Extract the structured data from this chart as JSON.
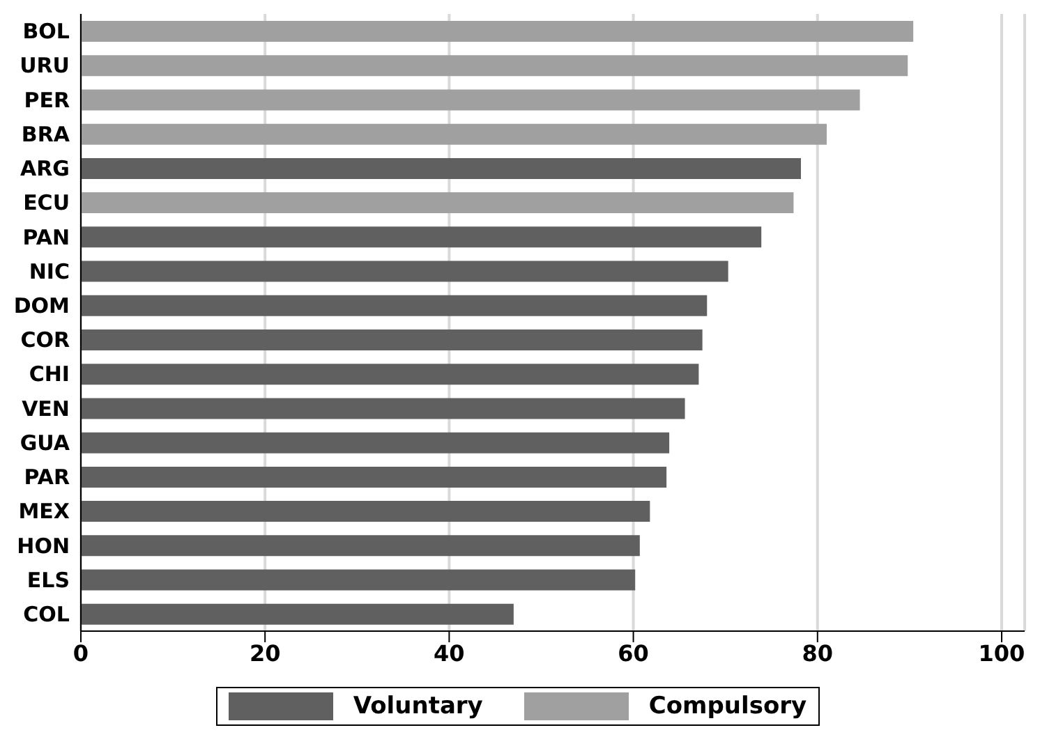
{
  "chart_data": {
    "type": "bar",
    "orientation": "horizontal",
    "stacked": true,
    "categories": [
      "BOL",
      "URU",
      "PER",
      "BRA",
      "ARG",
      "ECU",
      "PAN",
      "NIC",
      "DOM",
      "COR",
      "CHI",
      "VEN",
      "GUA",
      "PAR",
      "MEX",
      "HON",
      "ELS",
      "COL"
    ],
    "series": [
      {
        "name": "Voluntary",
        "color": "#606060",
        "values": [
          null,
          null,
          null,
          null,
          78.2,
          null,
          73.9,
          70.3,
          68.0,
          67.5,
          67.1,
          65.6,
          63.9,
          63.6,
          61.8,
          60.7,
          60.2,
          47.0
        ]
      },
      {
        "name": "Compulsory",
        "color": "#a0a0a0",
        "values": [
          90.4,
          89.8,
          84.6,
          81.0,
          null,
          77.4,
          null,
          null,
          null,
          null,
          null,
          null,
          null,
          null,
          null,
          null,
          null,
          null
        ]
      }
    ],
    "xlim": [
      0,
      102.5
    ],
    "xticks": [
      0,
      20,
      40,
      60,
      80,
      100
    ],
    "grid": "x",
    "legend": "bottom"
  }
}
